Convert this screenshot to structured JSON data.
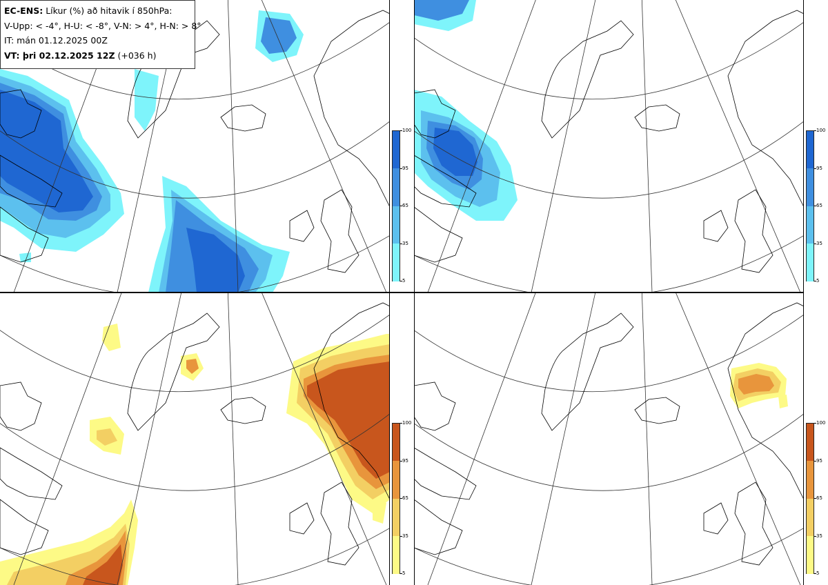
{
  "legend": {
    "model": "EC-ENS:",
    "title": "Líkur (%) að hitavik í 850hPa:",
    "thresholds": "V-Upp: < -4°, H-U: < -8°, V-N: > 4°, H-N: > 8°",
    "initial_time": "IT: mán 01.12.2025 00Z",
    "valid_label": "VT: þri 02.12.2025 12Z",
    "lead": "(+036 h)"
  },
  "panels": [
    {
      "id": "V-Upp",
      "palette": "cold"
    },
    {
      "id": "H-U",
      "palette": "cold"
    },
    {
      "id": "V-N",
      "palette": "warm"
    },
    {
      "id": "H-N",
      "palette": "warm"
    }
  ],
  "colorbar": {
    "ticks": [
      "100",
      "95",
      "65",
      "35",
      "5"
    ],
    "cold_colors": [
      "#1f67d2",
      "#3f8fe0",
      "#5cc0ee",
      "#7ef4fb"
    ],
    "warm_colors": [
      "#c8561d",
      "#e8953c",
      "#f3cf63",
      "#fdfa86"
    ]
  },
  "colors": {
    "cold_light": "#7ef4fb",
    "cold_mid": "#5cc0ee",
    "cold_strong": "#3f8fe0",
    "cold_max": "#1f67d2",
    "warm_light": "#fdfa86",
    "warm_mid": "#f3cf63",
    "warm_strong": "#e8953c",
    "warm_max": "#c8561d"
  }
}
